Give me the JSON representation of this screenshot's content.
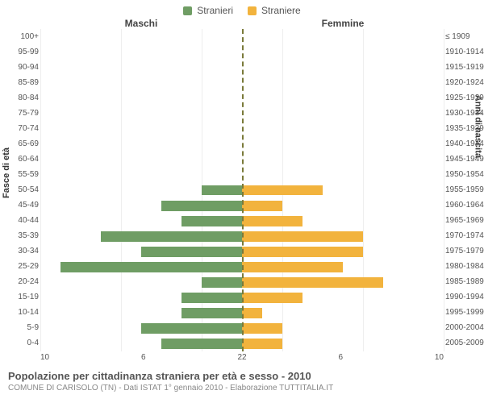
{
  "legend": {
    "male": "Stranieri",
    "female": "Straniere"
  },
  "headers": {
    "male": "Maschi",
    "female": "Femmine"
  },
  "axis_titles": {
    "left": "Fasce di età",
    "right": "Anni di nascita"
  },
  "footer": {
    "title": "Popolazione per cittadinanza straniera per età e sesso - 2010",
    "subtitle": "COMUNE DI CARISOLO (TN) - Dati ISTAT 1° gennaio 2010 - Elaborazione TUTTITALIA.IT"
  },
  "chart": {
    "type": "population-pyramid",
    "xmax": 10,
    "xticks_left": [
      10,
      6,
      2
    ],
    "xticks_right": [
      2,
      6,
      10
    ],
    "colors": {
      "male": "#6f9d64",
      "female": "#f2b33d",
      "center_line": "#7a7a3a",
      "grid": "#eeeeee",
      "background": "#ffffff",
      "text": "#555555"
    },
    "bar_height_pct": 68,
    "rows": [
      {
        "age": "100+",
        "birth": "≤ 1909",
        "m": 0,
        "f": 0
      },
      {
        "age": "95-99",
        "birth": "1910-1914",
        "m": 0,
        "f": 0
      },
      {
        "age": "90-94",
        "birth": "1915-1919",
        "m": 0,
        "f": 0
      },
      {
        "age": "85-89",
        "birth": "1920-1924",
        "m": 0,
        "f": 0
      },
      {
        "age": "80-84",
        "birth": "1925-1929",
        "m": 0,
        "f": 0
      },
      {
        "age": "75-79",
        "birth": "1930-1934",
        "m": 0,
        "f": 0
      },
      {
        "age": "70-74",
        "birth": "1935-1939",
        "m": 0,
        "f": 0
      },
      {
        "age": "65-69",
        "birth": "1940-1944",
        "m": 0,
        "f": 0
      },
      {
        "age": "60-64",
        "birth": "1945-1949",
        "m": 0,
        "f": 0
      },
      {
        "age": "55-59",
        "birth": "1950-1954",
        "m": 0,
        "f": 0
      },
      {
        "age": "50-54",
        "birth": "1955-1959",
        "m": 2,
        "f": 4
      },
      {
        "age": "45-49",
        "birth": "1960-1964",
        "m": 4,
        "f": 2
      },
      {
        "age": "40-44",
        "birth": "1965-1969",
        "m": 3,
        "f": 3
      },
      {
        "age": "35-39",
        "birth": "1970-1974",
        "m": 7,
        "f": 6
      },
      {
        "age": "30-34",
        "birth": "1975-1979",
        "m": 5,
        "f": 6
      },
      {
        "age": "25-29",
        "birth": "1980-1984",
        "m": 9,
        "f": 5
      },
      {
        "age": "20-24",
        "birth": "1985-1989",
        "m": 2,
        "f": 7
      },
      {
        "age": "15-19",
        "birth": "1990-1994",
        "m": 3,
        "f": 3
      },
      {
        "age": "10-14",
        "birth": "1995-1999",
        "m": 3,
        "f": 1
      },
      {
        "age": "5-9",
        "birth": "2000-2004",
        "m": 5,
        "f": 2
      },
      {
        "age": "0-4",
        "birth": "2005-2009",
        "m": 4,
        "f": 2
      }
    ]
  }
}
